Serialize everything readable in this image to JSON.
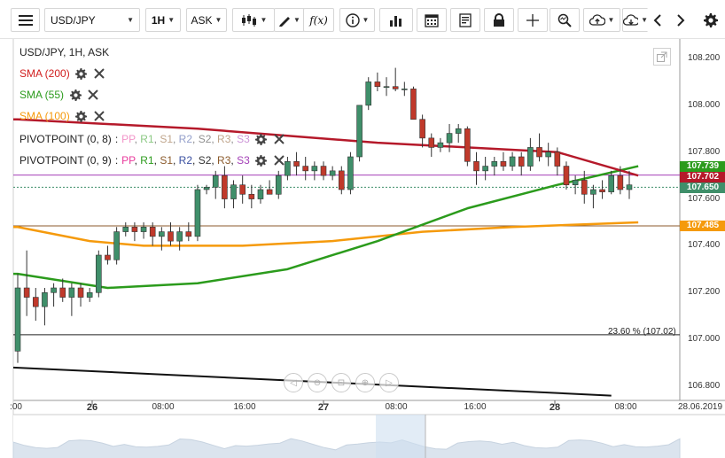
{
  "toolbar": {
    "symbol": "USD/JPY",
    "timeframe": "1H",
    "price_type": "ASK"
  },
  "chart": {
    "title": "USD/JPY, 1H, ASK",
    "indicators": [
      {
        "label": "SMA (200)",
        "color": "#d11f1f"
      },
      {
        "label": "SMA (55)",
        "color": "#2b9b1c"
      },
      {
        "label": "SMA (100)",
        "color": "#f59a0c"
      }
    ],
    "pivots": [
      {
        "label": "PIVOTPOINT (0, 8)",
        "faded": true
      },
      {
        "label": "PIVOTPOINT (0, 9)",
        "faded": false
      }
    ],
    "pivot_items": [
      {
        "text": "PP",
        "color": "#e93a9c"
      },
      {
        "text": "R1",
        "color": "#2b9b1c"
      },
      {
        "text": "S1",
        "color": "#8b5a2b"
      },
      {
        "text": "R2",
        "color": "#3a4fa0"
      },
      {
        "text": "S2",
        "color": "#333333"
      },
      {
        "text": "R3",
        "color": "#8b5a2b"
      },
      {
        "text": "S3",
        "color": "#a43fb7"
      }
    ],
    "y_ticks": [
      "108.200",
      "108.000",
      "107.800",
      "107.600",
      "107.400",
      "107.200",
      "107.000",
      "106.800"
    ],
    "x_ticks": [
      {
        "label": ":00",
        "day": false
      },
      {
        "label": "26",
        "day": true
      },
      {
        "label": "08:00",
        "day": false
      },
      {
        "label": "16:00",
        "day": false
      },
      {
        "label": "27",
        "day": true
      },
      {
        "label": "08:00",
        "day": false
      },
      {
        "label": "16:00",
        "day": false
      },
      {
        "label": "28",
        "day": true
      },
      {
        "label": "08:00",
        "day": false
      },
      {
        "label": "28.06.2019",
        "day": false
      }
    ],
    "price_badges": [
      {
        "value": "107.739",
        "color": "#2b9b1c"
      },
      {
        "value": "107.702",
        "color": "#b5192a"
      },
      {
        "value": "107.650",
        "color": "#3f8f6a"
      },
      {
        "value": "107.485",
        "color": "#f59a0c"
      }
    ],
    "fib_label": "23.60 % (107.02)"
  },
  "chart_data": {
    "type": "candlestick",
    "title": "USD/JPY, 1H, ASK",
    "ylim": [
      106.75,
      108.25
    ],
    "candles": [
      [
        106.95,
        107.28,
        106.9,
        107.22
      ],
      [
        107.22,
        107.38,
        107.1,
        107.18
      ],
      [
        107.18,
        107.22,
        107.08,
        107.14
      ],
      [
        107.14,
        107.22,
        107.06,
        107.2
      ],
      [
        107.2,
        107.24,
        107.14,
        107.22
      ],
      [
        107.22,
        107.26,
        107.16,
        107.18
      ],
      [
        107.18,
        107.24,
        107.1,
        107.22
      ],
      [
        107.22,
        107.24,
        107.14,
        107.18
      ],
      [
        107.18,
        107.22,
        107.16,
        107.2
      ],
      [
        107.2,
        107.38,
        107.18,
        107.36
      ],
      [
        107.36,
        107.4,
        107.32,
        107.34
      ],
      [
        107.34,
        107.48,
        107.32,
        107.46
      ],
      [
        107.46,
        107.5,
        107.44,
        107.48
      ],
      [
        107.48,
        107.5,
        107.42,
        107.46
      ],
      [
        107.46,
        107.5,
        107.43,
        107.48
      ],
      [
        107.48,
        107.5,
        107.4,
        107.44
      ],
      [
        107.44,
        107.48,
        107.38,
        107.46
      ],
      [
        107.46,
        107.5,
        107.4,
        107.42
      ],
      [
        107.42,
        107.48,
        107.38,
        107.46
      ],
      [
        107.46,
        107.5,
        107.42,
        107.44
      ],
      [
        107.44,
        107.66,
        107.42,
        107.64
      ],
      [
        107.64,
        107.66,
        107.62,
        107.65
      ],
      [
        107.65,
        107.72,
        107.6,
        107.7
      ],
      [
        107.7,
        107.74,
        107.56,
        107.6
      ],
      [
        107.6,
        107.68,
        107.56,
        107.66
      ],
      [
        107.66,
        107.7,
        107.58,
        107.62
      ],
      [
        107.62,
        107.66,
        107.56,
        107.6
      ],
      [
        107.6,
        107.66,
        107.58,
        107.64
      ],
      [
        107.64,
        107.68,
        107.62,
        107.62
      ],
      [
        107.62,
        107.72,
        107.6,
        107.7
      ],
      [
        107.7,
        107.78,
        107.68,
        107.76
      ],
      [
        107.76,
        107.8,
        107.7,
        107.74
      ],
      [
        107.74,
        107.78,
        107.68,
        107.72
      ],
      [
        107.72,
        107.76,
        107.68,
        107.74
      ],
      [
        107.74,
        107.76,
        107.68,
        107.7
      ],
      [
        107.7,
        107.74,
        107.68,
        107.72
      ],
      [
        107.72,
        107.74,
        107.62,
        107.64
      ],
      [
        107.64,
        107.8,
        107.62,
        107.78
      ],
      [
        107.78,
        108.0,
        107.76,
        108.0
      ],
      [
        108.0,
        108.12,
        107.98,
        108.1
      ],
      [
        108.1,
        108.14,
        108.06,
        108.08
      ],
      [
        108.08,
        108.12,
        108.04,
        108.08
      ],
      [
        108.08,
        108.16,
        108.06,
        108.07
      ],
      [
        108.07,
        108.1,
        108.04,
        108.07
      ],
      [
        108.07,
        108.08,
        107.94,
        107.94
      ],
      [
        107.94,
        107.96,
        107.82,
        107.86
      ],
      [
        107.86,
        107.88,
        107.78,
        107.82
      ],
      [
        107.82,
        107.86,
        107.8,
        107.84
      ],
      [
        107.84,
        107.92,
        107.8,
        107.88
      ],
      [
        107.88,
        107.92,
        107.84,
        107.9
      ],
      [
        107.9,
        107.91,
        107.74,
        107.76
      ],
      [
        107.76,
        107.8,
        107.66,
        107.72
      ],
      [
        107.72,
        107.78,
        107.68,
        107.74
      ],
      [
        107.74,
        107.78,
        107.7,
        107.76
      ],
      [
        107.76,
        107.8,
        107.72,
        107.74
      ],
      [
        107.74,
        107.8,
        107.72,
        107.78
      ],
      [
        107.78,
        107.8,
        107.7,
        107.74
      ],
      [
        107.74,
        107.86,
        107.72,
        107.82
      ],
      [
        107.82,
        107.88,
        107.76,
        107.78
      ],
      [
        107.78,
        107.84,
        107.74,
        107.8
      ],
      [
        107.8,
        107.82,
        107.7,
        107.74
      ],
      [
        107.74,
        107.76,
        107.64,
        107.66
      ],
      [
        107.66,
        107.7,
        107.62,
        107.68
      ],
      [
        107.68,
        107.72,
        107.58,
        107.62
      ],
      [
        107.62,
        107.66,
        107.56,
        107.64
      ],
      [
        107.64,
        107.68,
        107.6,
        107.63
      ],
      [
        107.63,
        107.72,
        107.62,
        107.7
      ],
      [
        107.7,
        107.74,
        107.62,
        107.64
      ],
      [
        107.64,
        107.72,
        107.6,
        107.66
      ]
    ],
    "sma200": [
      [
        0,
        107.94
      ],
      [
        20,
        107.9
      ],
      [
        40,
        107.84
      ],
      [
        60,
        107.8
      ],
      [
        69,
        107.7
      ]
    ],
    "sma55": [
      [
        0,
        107.28
      ],
      [
        10,
        107.22
      ],
      [
        20,
        107.24
      ],
      [
        30,
        107.3
      ],
      [
        40,
        107.42
      ],
      [
        50,
        107.56
      ],
      [
        60,
        107.66
      ],
      [
        69,
        107.74
      ]
    ],
    "sma100": [
      [
        0,
        107.48
      ],
      [
        8,
        107.42
      ],
      [
        14,
        107.4
      ],
      [
        25,
        107.4
      ],
      [
        35,
        107.42
      ],
      [
        45,
        107.46
      ],
      [
        55,
        107.48
      ],
      [
        69,
        107.5
      ]
    ],
    "horizontal_lines": [
      {
        "y": 107.702,
        "color": "#a43fb7"
      },
      {
        "y": 107.65,
        "color": "#3f8f6a",
        "dashed": true
      },
      {
        "y": 107.485,
        "color": "#8b5a2b"
      },
      {
        "y": 107.02,
        "color": "#222222"
      }
    ],
    "trendline": [
      [
        0,
        106.88
      ],
      [
        66,
        106.76
      ]
    ]
  }
}
